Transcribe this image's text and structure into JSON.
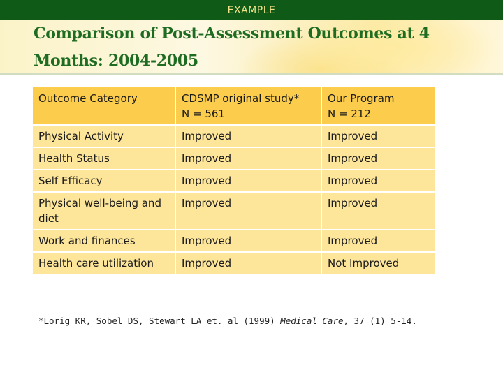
{
  "header": {
    "label": "EXAMPLE",
    "title": "Comparison of Post-Assessment Outcomes at 4 Months: 2004-2005"
  },
  "table": {
    "head": {
      "col1": "Outcome Category",
      "col2_line1": "CDSMP original study*",
      "col2_line2": "N = 561",
      "col3_line1": "Our Program",
      "col3_line2": "N = 212"
    },
    "rows": [
      {
        "category": "Physical Activity",
        "cdsmp": "Improved",
        "program": "Improved"
      },
      {
        "category": "Health Status",
        "cdsmp": "Improved",
        "program": "Improved"
      },
      {
        "category": "Self Efficacy",
        "cdsmp": "Improved",
        "program": "Improved"
      },
      {
        "category": "Physical well-being and diet",
        "cdsmp": "Improved",
        "program": "Improved"
      },
      {
        "category": "Work and finances",
        "cdsmp": "Improved",
        "program": "Improved"
      },
      {
        "category": "Health care utilization",
        "cdsmp": "Improved",
        "program": "Not Improved"
      }
    ]
  },
  "footnote": {
    "before": "*Lorig KR, Sobel DS, Stewart LA et. al (1999) ",
    "journal": "Medical Care",
    "after": ", 37 (1) 5-14."
  },
  "colors": {
    "topbar": "#0f5a16",
    "title": "#1e6b22",
    "header_cell": "#fccc4c",
    "body_cell": "#fde59a",
    "improved": "#6a3fbf",
    "not_improved": "#208a2c"
  }
}
